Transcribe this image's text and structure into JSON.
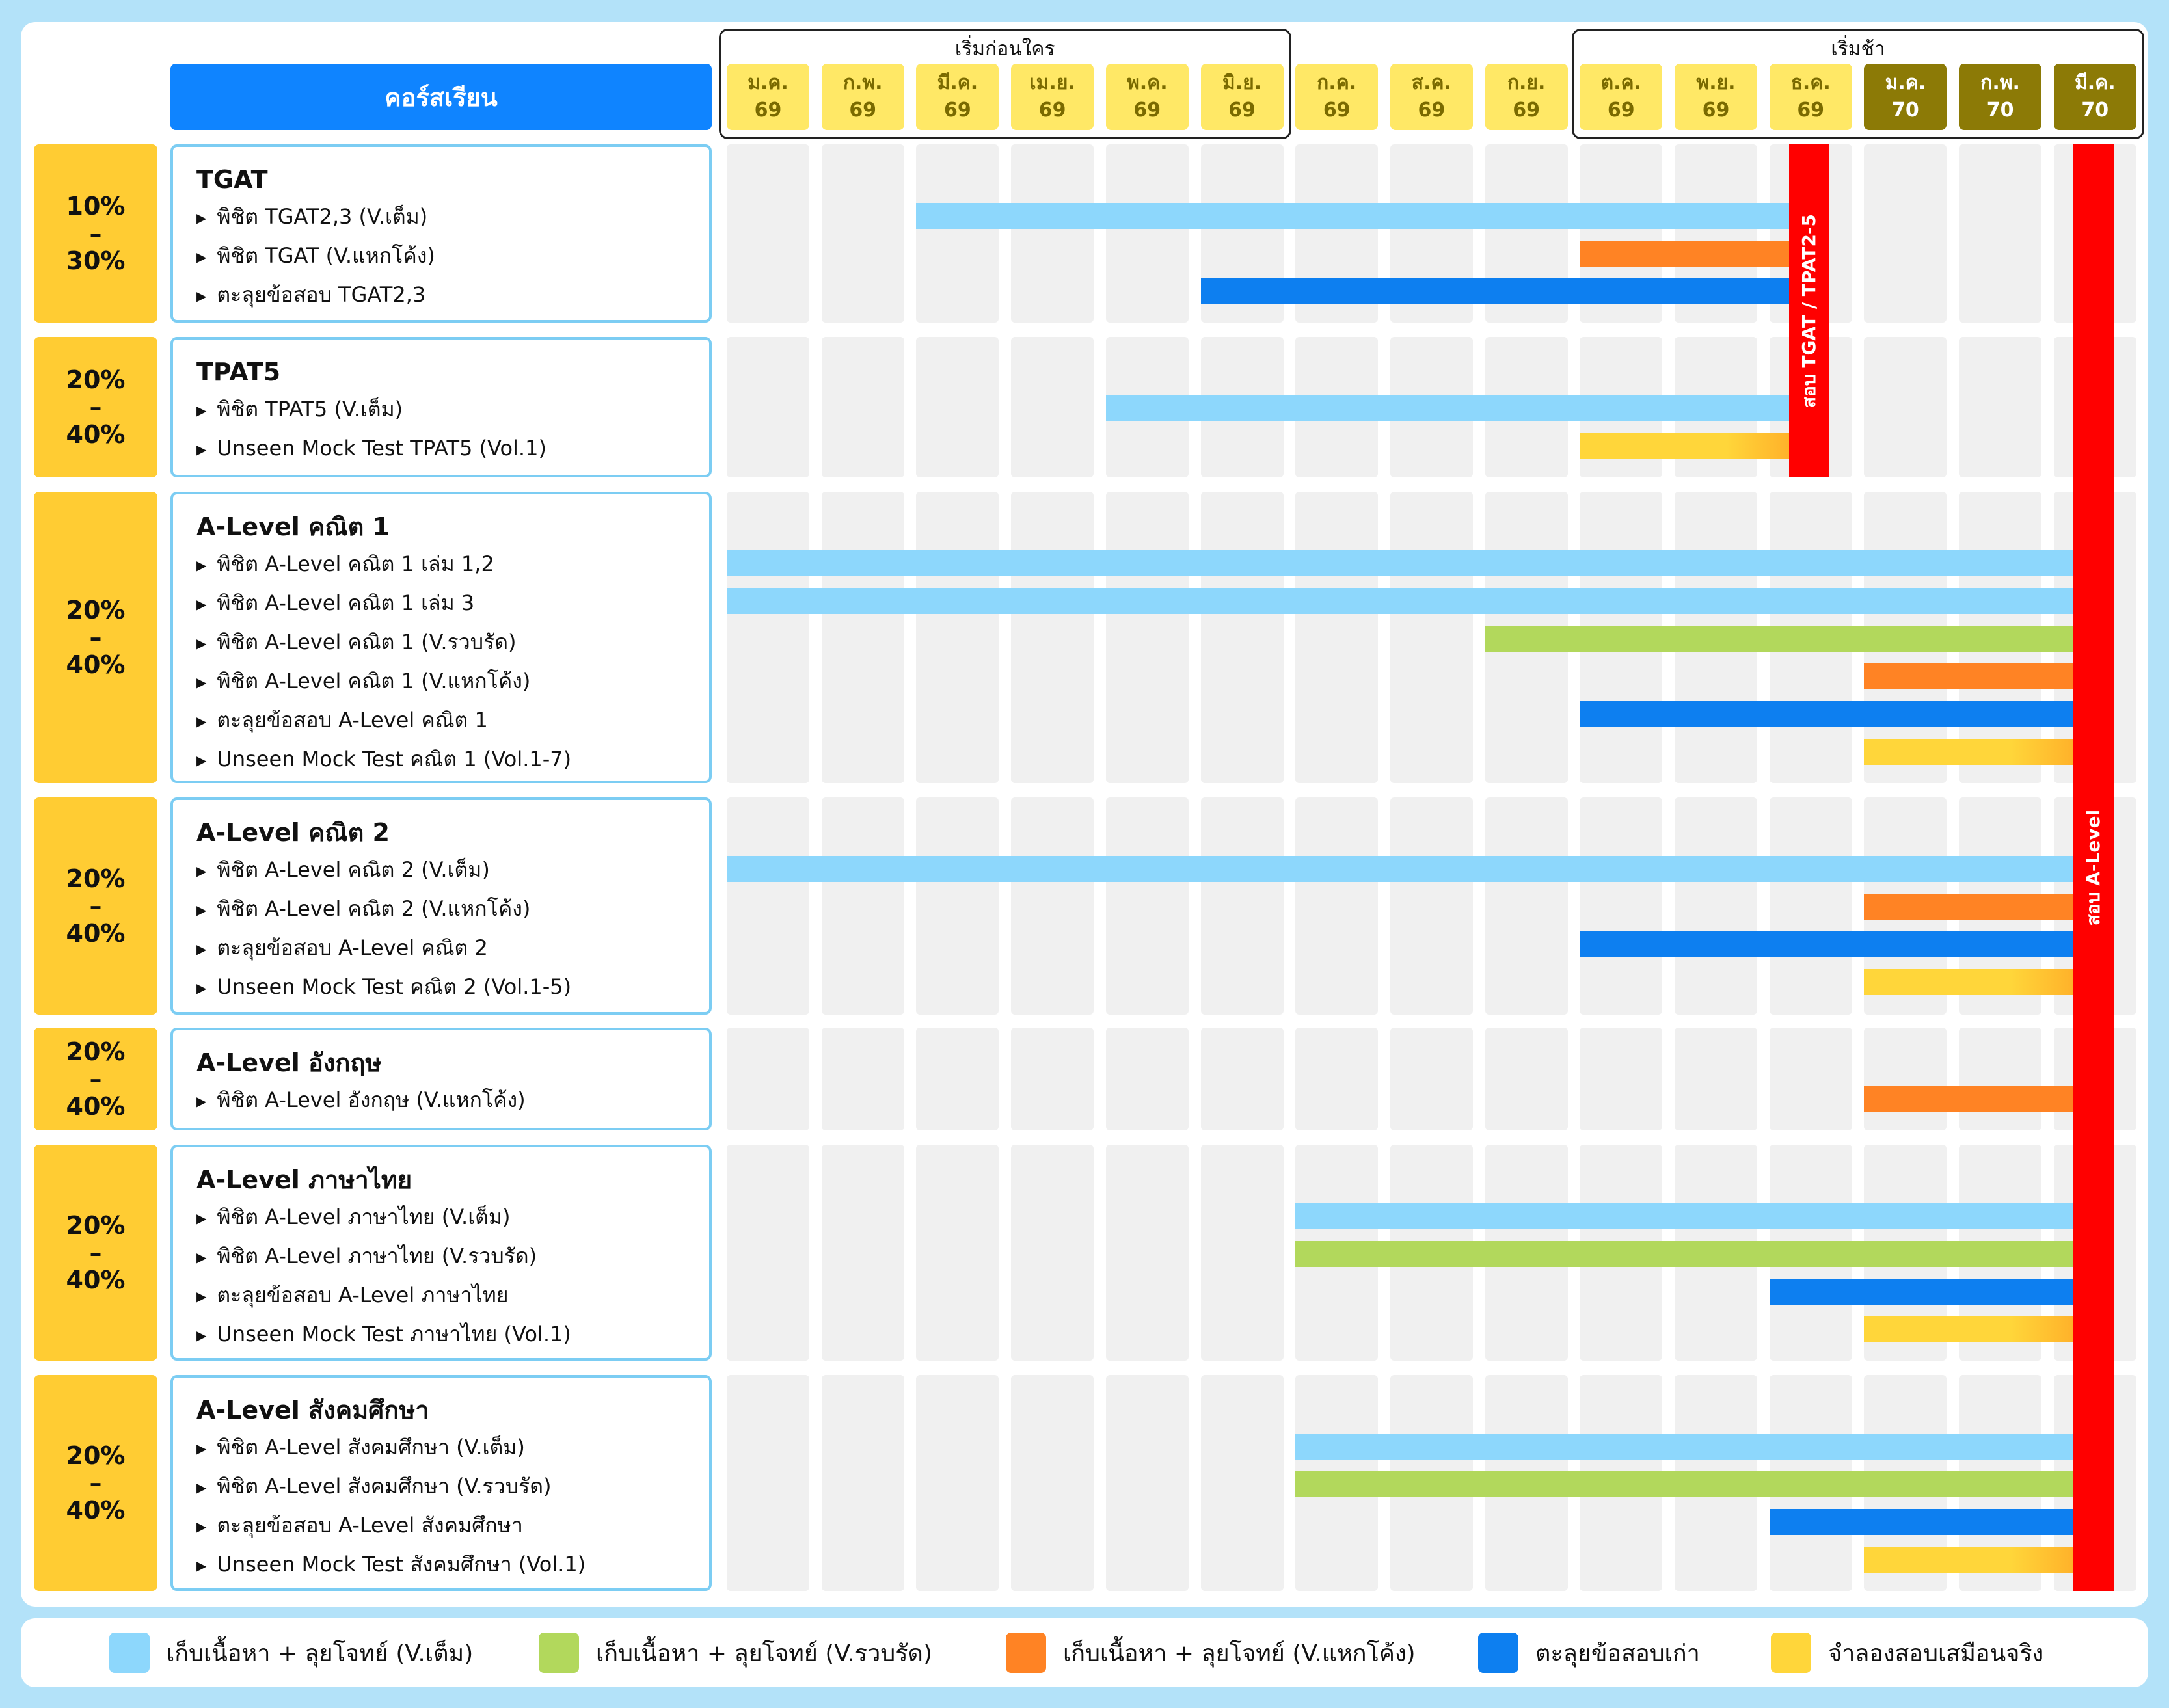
{
  "header": {
    "course_label": "คอร์สเรียน"
  },
  "groups": {
    "early": "เริ่มก่อนใคร",
    "late": "เริ่มช้า"
  },
  "months": [
    {
      "name": "ม.ค.",
      "year": "69"
    },
    {
      "name": "ก.พ.",
      "year": "69"
    },
    {
      "name": "มี.ค.",
      "year": "69"
    },
    {
      "name": "เม.ย.",
      "year": "69"
    },
    {
      "name": "พ.ค.",
      "year": "69"
    },
    {
      "name": "มิ.ย.",
      "year": "69"
    },
    {
      "name": "ก.ค.",
      "year": "69"
    },
    {
      "name": "ส.ค.",
      "year": "69"
    },
    {
      "name": "ก.ย.",
      "year": "69"
    },
    {
      "name": "ต.ค.",
      "year": "69"
    },
    {
      "name": "พ.ย.",
      "year": "69"
    },
    {
      "name": "ธ.ค.",
      "year": "69"
    },
    {
      "name": "ม.ค.",
      "year": "70"
    },
    {
      "name": "ก.พ.",
      "year": "70"
    },
    {
      "name": "มี.ค.",
      "year": "70"
    }
  ],
  "colors": {
    "full": "#8dd7fc",
    "summary": "#b2d85c",
    "turbo": "#ff8324",
    "past": "#0d7ff0",
    "mock": "#ffd63a",
    "exam": "#ff0000"
  },
  "sections": [
    {
      "pct_top": "10%",
      "pct_mid": "–",
      "pct_bottom": "30%",
      "title": "TGAT",
      "items": [
        "พิชิต TGAT2,3 (V.เต็ม)",
        "พิชิต TGAT (V.แหกโค้ง)",
        "ตะลุยข้อสอบ TGAT2,3"
      ]
    },
    {
      "pct_top": "20%",
      "pct_mid": "–",
      "pct_bottom": "40%",
      "title": "TPAT5",
      "items": [
        "พิชิต TPAT5 (V.เต็ม)",
        "Unseen Mock Test TPAT5 (Vol.1)"
      ]
    },
    {
      "pct_top": "20%",
      "pct_mid": "–",
      "pct_bottom": "40%",
      "title": "A-Level คณิต 1",
      "items": [
        "พิชิต A-Level คณิต 1 เล่ม 1,2",
        "พิชิต A-Level คณิต 1 เล่ม 3",
        "พิชิต A-Level คณิต 1 (V.รวบรัด)",
        "พิชิต A-Level คณิต 1 (V.แหกโค้ง)",
        "ตะลุยข้อสอบ A-Level คณิต 1",
        "Unseen Mock Test คณิต 1 (Vol.1-7)"
      ]
    },
    {
      "pct_top": "20%",
      "pct_mid": "–",
      "pct_bottom": "40%",
      "title": "A-Level คณิต 2",
      "items": [
        "พิชิต A-Level คณิต 2 (V.เต็ม)",
        "พิชิต A-Level คณิต 2 (V.แหกโค้ง)",
        "ตะลุยข้อสอบ A-Level คณิต 2",
        "Unseen Mock Test คณิต 2 (Vol.1-5)"
      ]
    },
    {
      "pct_top": "20%",
      "pct_mid": "–",
      "pct_bottom": "40%",
      "title": "A-Level อังกฤษ",
      "items": [
        "พิชิต A-Level อังกฤษ (V.แหกโค้ง)"
      ]
    },
    {
      "pct_top": "20%",
      "pct_mid": "–",
      "pct_bottom": "40%",
      "title": "A-Level ภาษาไทย",
      "items": [
        "พิชิต A-Level ภาษาไทย (V.เต็ม)",
        "พิชิต A-Level ภาษาไทย (V.รวบรัด)",
        "ตะลุยข้อสอบ A-Level ภาษาไทย",
        "Unseen Mock Test ภาษาไทย (Vol.1)"
      ]
    },
    {
      "pct_top": "20%",
      "pct_mid": "–",
      "pct_bottom": "40%",
      "title": "A-Level สังคมศึกษา",
      "items": [
        "พิชิต A-Level สังคมศึกษา (V.เต็ม)",
        "พิชิต A-Level สังคมศึกษา (V.รวบรัด)",
        "ตะลุยข้อสอบ A-Level สังคมศึกษา",
        "Unseen Mock Test สังคมศึกษา (Vol.1)"
      ]
    }
  ],
  "schedule": [
    [
      {
        "kind": "full",
        "start": 3,
        "end": 12
      },
      {
        "kind": "turbo",
        "start": 10,
        "end": 12
      },
      {
        "kind": "past",
        "start": 6,
        "end": 12
      }
    ],
    [
      {
        "kind": "full",
        "start": 5,
        "end": 12
      },
      {
        "kind": "mock",
        "start": 10,
        "end": 12
      }
    ],
    [
      {
        "kind": "full",
        "start": 1,
        "end": 15
      },
      {
        "kind": "full",
        "start": 1,
        "end": 15
      },
      {
        "kind": "summary",
        "start": 9,
        "end": 15
      },
      {
        "kind": "turbo",
        "start": 13,
        "end": 15
      },
      {
        "kind": "past",
        "start": 10,
        "end": 15
      },
      {
        "kind": "mock",
        "start": 13,
        "end": 15
      }
    ],
    [
      {
        "kind": "full",
        "start": 1,
        "end": 15
      },
      {
        "kind": "turbo",
        "start": 13,
        "end": 15
      },
      {
        "kind": "past",
        "start": 10,
        "end": 15
      },
      {
        "kind": "mock",
        "start": 13,
        "end": 15
      }
    ],
    [
      {
        "kind": "turbo",
        "start": 13,
        "end": 15
      }
    ],
    [
      {
        "kind": "full",
        "start": 7,
        "end": 15
      },
      {
        "kind": "summary",
        "start": 7,
        "end": 15
      },
      {
        "kind": "past",
        "start": 12,
        "end": 15
      },
      {
        "kind": "mock",
        "start": 13,
        "end": 15
      }
    ],
    [
      {
        "kind": "full",
        "start": 7,
        "end": 15
      },
      {
        "kind": "summary",
        "start": 7,
        "end": 15
      },
      {
        "kind": "past",
        "start": 12,
        "end": 15
      },
      {
        "kind": "mock",
        "start": 13,
        "end": 15
      }
    ]
  ],
  "exams": [
    {
      "label": "สอบ TGAT / TPAT2-5",
      "month": 12
    },
    {
      "label": "สอบ A-Level",
      "month": 15
    }
  ],
  "legend": [
    {
      "kind": "full",
      "label": "เก็บเนื้อหา + ลุยโจทย์ (V.เต็ม)"
    },
    {
      "kind": "summary",
      "label": "เก็บเนื้อหา + ลุยโจทย์ (V.รวบรัด)"
    },
    {
      "kind": "turbo",
      "label": "เก็บเนื้อหา + ลุยโจทย์ (V.แหกโค้ง)"
    },
    {
      "kind": "past",
      "label": "ตะลุยข้อสอบเก่า"
    },
    {
      "kind": "mock",
      "label": "จำลองสอบเสมือนจริง"
    }
  ]
}
